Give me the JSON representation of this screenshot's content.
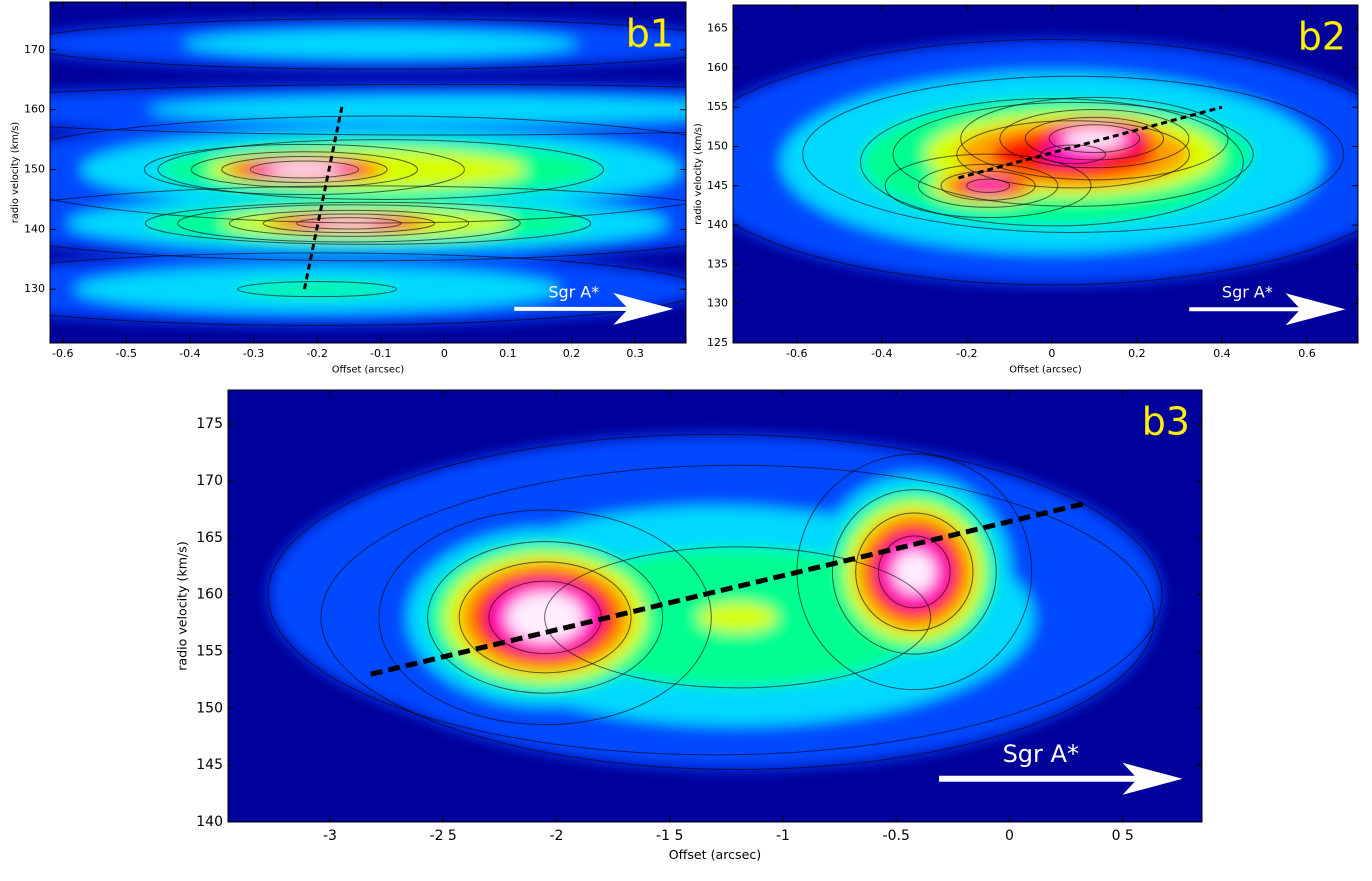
{
  "chart_data": [
    {
      "type": "heatmap",
      "panel_label": "b1",
      "annotation": "Sgr A*",
      "xlabel": "Offset (arcsec)",
      "ylabel": "radio velocity (km/s)",
      "xlim": [
        -0.62,
        0.38
      ],
      "ylim": [
        121,
        178
      ],
      "xticks": [
        -0.6,
        -0.5,
        -0.4,
        -0.3,
        -0.2,
        -0.1,
        0,
        0.1,
        0.2,
        0.3
      ],
      "yticks": [
        130,
        140,
        150,
        160,
        170
      ],
      "colormap": [
        "#00009a",
        "#0048ff",
        "#00d8ff",
        "#00ff90",
        "#d8ff00",
        "#ffa000",
        "#ff1000",
        "#ff00c8",
        "#ffeeff"
      ],
      "components": [
        {
          "x": -0.1,
          "y": 150,
          "sx": 0.35,
          "sy": 5,
          "peak": 0.55
        },
        {
          "x": -0.12,
          "y": 141,
          "sx": 0.35,
          "sy": 3.5,
          "peak": 0.55
        },
        {
          "x": -0.22,
          "y": 150,
          "sx": 0.12,
          "sy": 2,
          "peak": 1.0
        },
        {
          "x": -0.15,
          "y": 141,
          "sx": 0.13,
          "sy": 1.5,
          "peak": 0.95
        },
        {
          "x": -0.2,
          "y": 130,
          "sx": 0.4,
          "sy": 4,
          "peak": 0.35
        },
        {
          "x": -0.1,
          "y": 171,
          "sx": 0.4,
          "sy": 3,
          "peak": 0.3
        },
        {
          "x": 0.0,
          "y": 160,
          "sx": 0.6,
          "sy": 3,
          "peak": 0.3
        }
      ],
      "fit_line": {
        "x": [
          -0.22,
          -0.16
        ],
        "y": [
          130,
          161
        ]
      }
    },
    {
      "type": "heatmap",
      "panel_label": "b2",
      "annotation": "Sgr A*",
      "xlabel": "Offset (arcsec)",
      "ylabel": "radio velocity (km/s)",
      "xlim": [
        -0.75,
        0.72
      ],
      "ylim": [
        125,
        168
      ],
      "xticks": [
        -0.6,
        -0.4,
        -0.2,
        0,
        0.2,
        0.4,
        0.6
      ],
      "yticks": [
        125,
        130,
        135,
        140,
        145,
        150,
        155,
        160,
        165
      ],
      "colormap": [
        "#00009a",
        "#0048ff",
        "#00d8ff",
        "#00ff90",
        "#d8ff00",
        "#ffa000",
        "#ff1000",
        "#ff00c8",
        "#ffeeff"
      ],
      "components": [
        {
          "x": 0.0,
          "y": 148,
          "sx": 0.5,
          "sy": 9,
          "peak": 0.5
        },
        {
          "x": 0.05,
          "y": 149,
          "sx": 0.32,
          "sy": 5,
          "peak": 0.8
        },
        {
          "x": 0.1,
          "y": 151,
          "sx": 0.15,
          "sy": 2.5,
          "peak": 1.0
        },
        {
          "x": -0.15,
          "y": 145,
          "sx": 0.12,
          "sy": 2,
          "peak": 0.85
        }
      ],
      "fit_line": {
        "x": [
          -0.22,
          0.4
        ],
        "y": [
          146,
          155
        ]
      }
    },
    {
      "type": "heatmap",
      "panel_label": "b3",
      "annotation": "Sgr A*",
      "xlabel": "Offset (arcsec)",
      "ylabel": "radio velocity (km/s)",
      "xlim": [
        -3.45,
        0.85
      ],
      "ylim": [
        140,
        178
      ],
      "xticks": [
        -3,
        {
          "value": -2.5,
          "label": "-2 5"
        },
        -2,
        {
          "value": -1.5,
          "label": "-1 5"
        },
        -1,
        -0.5,
        0,
        {
          "value": 0.5,
          "label": "0 5"
        }
      ],
      "yticks": [
        140,
        145,
        150,
        155,
        160,
        165,
        170,
        175
      ],
      "colormap": [
        "#00009a",
        "#0048ff",
        "#00d8ff",
        "#00ff90",
        "#d8ff00",
        "#ffa000",
        "#ff1000",
        "#ff00c8",
        "#ffeeff"
      ],
      "components": [
        {
          "x": -1.3,
          "y": 160,
          "sx": 1.4,
          "sy": 10,
          "peak": 0.3
        },
        {
          "x": -1.2,
          "y": 158,
          "sx": 1.1,
          "sy": 8,
          "peak": 0.45
        },
        {
          "x": -2.05,
          "y": 158,
          "sx": 0.35,
          "sy": 4.5,
          "peak": 1.0
        },
        {
          "x": -0.42,
          "y": 162,
          "sx": 0.25,
          "sy": 5,
          "peak": 0.95
        }
      ],
      "fit_line": {
        "x": [
          -2.82,
          0.33
        ],
        "y": [
          153,
          168
        ]
      }
    }
  ]
}
